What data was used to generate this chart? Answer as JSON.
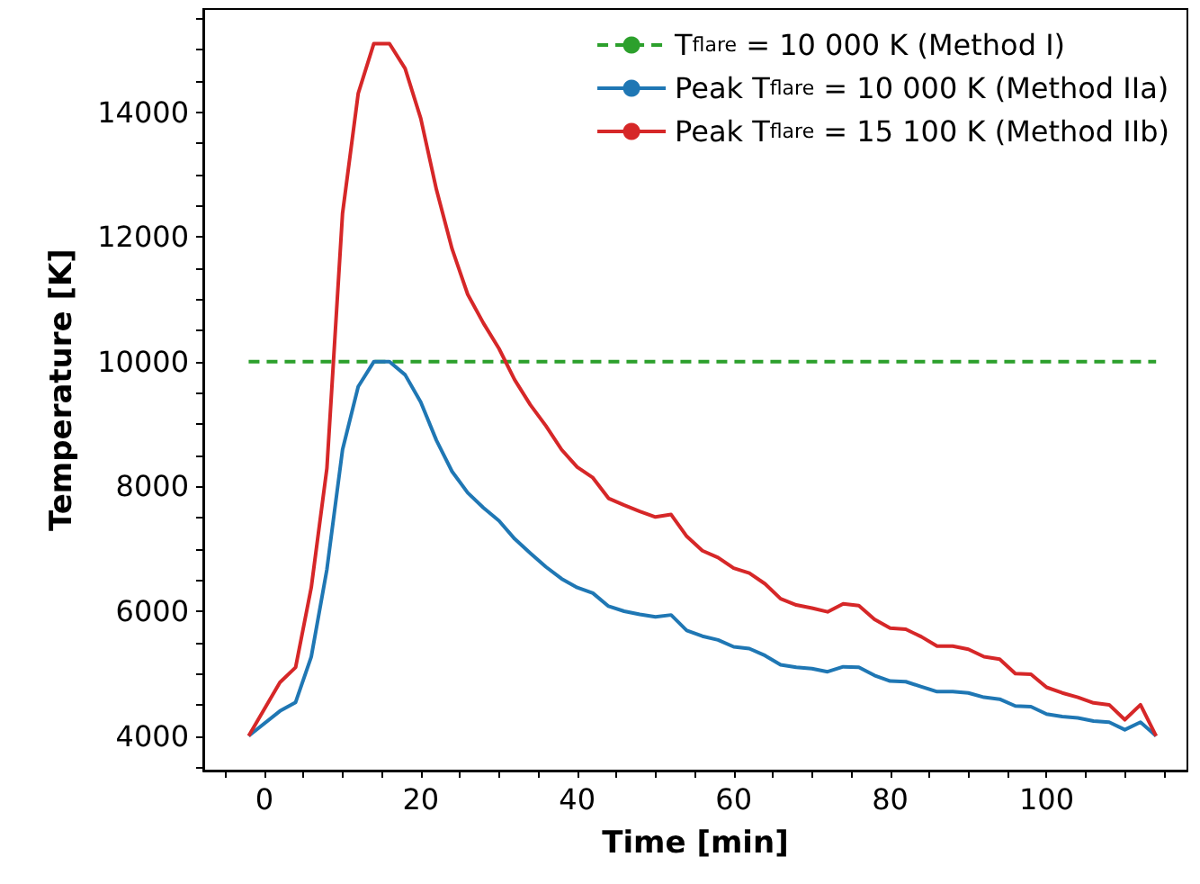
{
  "chart_data": {
    "type": "line",
    "xlabel": "Time [min]",
    "ylabel": "Temperature [K]",
    "xlim": [
      -7.8,
      118
    ],
    "ylim": [
      3445,
      15655
    ],
    "xticks": [
      {
        "value": -5,
        "label": null
      },
      0,
      {
        "value": 5,
        "label": null
      },
      {
        "value": 10,
        "label": null
      },
      {
        "value": 15,
        "label": null
      },
      20,
      {
        "value": 25,
        "label": null
      },
      {
        "value": 30,
        "label": null
      },
      {
        "value": 35,
        "label": null
      },
      40,
      {
        "value": 45,
        "label": null
      },
      {
        "value": 50,
        "label": null
      },
      {
        "value": 55,
        "label": null
      },
      60,
      {
        "value": 65,
        "label": null
      },
      {
        "value": 70,
        "label": null
      },
      {
        "value": 75,
        "label": null
      },
      80,
      {
        "value": 85,
        "label": null
      },
      {
        "value": 90,
        "label": null
      },
      {
        "value": 95,
        "label": null
      },
      100,
      {
        "value": 105,
        "label": null
      },
      {
        "value": 110,
        "label": null
      },
      {
        "value": 115,
        "label": null
      }
    ],
    "yticks": [
      {
        "value": 3500,
        "label": null
      },
      4000,
      {
        "value": 4500,
        "label": null
      },
      {
        "value": 5000,
        "label": null
      },
      {
        "value": 5500,
        "label": null
      },
      6000,
      {
        "value": 6500,
        "label": null
      },
      {
        "value": 7000,
        "label": null
      },
      {
        "value": 7500,
        "label": null
      },
      8000,
      {
        "value": 8500,
        "label": null
      },
      {
        "value": 9000,
        "label": null
      },
      {
        "value": 9500,
        "label": null
      },
      10000,
      {
        "value": 10500,
        "label": null
      },
      {
        "value": 11000,
        "label": null
      },
      {
        "value": 11500,
        "label": null
      },
      12000,
      {
        "value": 12500,
        "label": null
      },
      {
        "value": 13000,
        "label": null
      },
      {
        "value": 13500,
        "label": null
      },
      14000,
      {
        "value": 14500,
        "label": null
      },
      {
        "value": 15000,
        "label": null
      },
      {
        "value": 15500,
        "label": null
      }
    ],
    "grid": false,
    "legend": "top right",
    "marker": "none",
    "x": [
      -2,
      2,
      4,
      6,
      8,
      10,
      12,
      14,
      16,
      18,
      20,
      22,
      24,
      26,
      28,
      30,
      32,
      34,
      36,
      38,
      40,
      42,
      44,
      46,
      48,
      50,
      52,
      54,
      56,
      58,
      60,
      62,
      64,
      66,
      68,
      70,
      72,
      74,
      76,
      78,
      80,
      82,
      84,
      86,
      88,
      90,
      92,
      94,
      96,
      98,
      100,
      102,
      104,
      106,
      108,
      110,
      112,
      114
    ],
    "series": [
      {
        "name": "T$_{flare}$ = 10 000 K (Method I)",
        "color": "#2ca02c",
        "line_style": "dashed",
        "x": [
          -2,
          114
        ],
        "values": [
          10000,
          10000
        ]
      },
      {
        "name": "Peak T$_{flare}$ = 10 000 K (Method IIa)",
        "color": "#1f77b4",
        "line_style": "solid",
        "values": [
          4000,
          4400,
          4540,
          5270,
          6670,
          8590,
          9600,
          10000,
          10000,
          9790,
          9350,
          8740,
          8240,
          7900,
          7660,
          7450,
          7160,
          6930,
          6710,
          6520,
          6380,
          6290,
          6080,
          6000,
          5950,
          5910,
          5940,
          5690,
          5600,
          5540,
          5430,
          5400,
          5290,
          5140,
          5100,
          5080,
          5030,
          5110,
          5100,
          4970,
          4880,
          4870,
          4790,
          4710,
          4710,
          4690,
          4620,
          4590,
          4480,
          4470,
          4350,
          4310,
          4290,
          4240,
          4220,
          4100,
          4220,
          4000
        ]
      },
      {
        "name": "Peak T$_{flare}$ = 15 100 K (Method IIb)",
        "color": "#d62728",
        "line_style": "solid",
        "values": [
          4000,
          4860,
          5100,
          6380,
          8290,
          12380,
          14300,
          15100,
          15100,
          14700,
          13900,
          12760,
          11810,
          11080,
          10620,
          10210,
          9710,
          9310,
          8970,
          8590,
          8310,
          8140,
          7810,
          7700,
          7600,
          7510,
          7550,
          7200,
          6970,
          6860,
          6690,
          6610,
          6440,
          6200,
          6100,
          6050,
          5990,
          6120,
          6090,
          5870,
          5730,
          5710,
          5590,
          5440,
          5440,
          5390,
          5270,
          5230,
          5000,
          4990,
          4780,
          4690,
          4620,
          4530,
          4500,
          4260,
          4500,
          4000
        ]
      }
    ]
  }
}
